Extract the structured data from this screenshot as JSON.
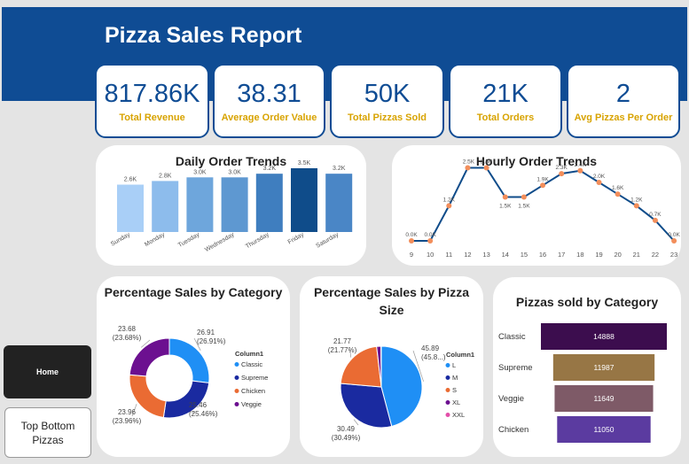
{
  "report": {
    "title": "Pizza Sales Report"
  },
  "kpis": [
    {
      "value": "817.86K",
      "label": "Total Revenue"
    },
    {
      "value": "38.31",
      "label": "Average Order Value"
    },
    {
      "value": "50K",
      "label": "Total Pizzas Sold"
    },
    {
      "value": "21K",
      "label": "Total Orders"
    },
    {
      "value": "2",
      "label": "Avg Pizzas Per Order"
    }
  ],
  "nav": {
    "home": "Home",
    "top_bottom": "Top Bottom Pizzas"
  },
  "chart_titles": {
    "daily": "Daily Order Trends",
    "hourly": "Hourly Order Trends",
    "category": "Percentage Sales by Category",
    "size_line1": "Percentage Sales by Pizza",
    "size_line2": "Size",
    "sold": "Pizzas sold by Category"
  },
  "chart_data": [
    {
      "type": "bar",
      "title": "Daily Order Trends",
      "categories": [
        "Sunday",
        "Monday",
        "Tuesday",
        "Wednesday",
        "Thursday",
        "Friday",
        "Saturday"
      ],
      "values": [
        2.6,
        2.8,
        3.0,
        3.0,
        3.2,
        3.5,
        3.2
      ],
      "labels": [
        "2.6K",
        "2.8K",
        "3.0K",
        "3.0K",
        "3.2K",
        "3.5K",
        "3.2K"
      ],
      "colors": [
        "#a9cff7",
        "#8dbcec",
        "#6ea6dc",
        "#5e98d1",
        "#3f7ebf",
        "#0f4c8a",
        "#4a86c6"
      ],
      "ylim": [
        0,
        3.5
      ]
    },
    {
      "type": "line",
      "title": "Hourly Order Trends",
      "x": [
        9,
        10,
        11,
        12,
        13,
        14,
        15,
        16,
        17,
        18,
        19,
        20,
        21,
        22,
        23
      ],
      "values": [
        0.0,
        0.0,
        1.2,
        2.5,
        2.5,
        1.5,
        1.5,
        1.9,
        2.3,
        2.4,
        2.0,
        1.6,
        1.2,
        0.7,
        0.0
      ],
      "labels": [
        "0.0K",
        "0.0K",
        "1.2K",
        "2.5K",
        "2.5K",
        "1.5K",
        "1.5K",
        "1.9K",
        "2.3K",
        "2.4K",
        "2.0K",
        "1.6K",
        "1.2K",
        "0.7K",
        "0.0K"
      ],
      "line_color": "#0f4c8a",
      "marker_color": "#f28e5b"
    },
    {
      "type": "pie",
      "title": "Percentage Sales by Category",
      "legend_title": "Column1",
      "donut": true,
      "slices": [
        {
          "name": "Classic",
          "value": 26.91,
          "label": "26.91",
          "pct": "(26.91%)",
          "color": "#1f8ff5"
        },
        {
          "name": "Supreme",
          "value": 25.46,
          "label": "25.46",
          "pct": "(25.46%)",
          "color": "#1a2aa0"
        },
        {
          "name": "Chicken",
          "value": 23.96,
          "label": "23.96",
          "pct": "(23.96%)",
          "color": "#ea6b33"
        },
        {
          "name": "Veggie",
          "value": 23.68,
          "label": "23.68",
          "pct": "(23.68%)",
          "color": "#6c1090"
        }
      ]
    },
    {
      "type": "pie",
      "title": "Percentage Sales by Pizza Size",
      "legend_title": "Column1",
      "donut": false,
      "slices": [
        {
          "name": "L",
          "value": 45.89,
          "label": "45.89",
          "pct": "(45.8...)",
          "color": "#1f8ff5"
        },
        {
          "name": "M",
          "value": 30.49,
          "label": "30.49",
          "pct": "(30.49%)",
          "color": "#1a2aa0"
        },
        {
          "name": "S",
          "value": 21.77,
          "label": "21.77",
          "pct": "(21.77%)",
          "color": "#ea6b33"
        },
        {
          "name": "XL",
          "value": 1.72,
          "label": "",
          "pct": "",
          "color": "#6c1090"
        },
        {
          "name": "XXL",
          "value": 0.12,
          "label": "",
          "pct": "",
          "color": "#e34fa9"
        }
      ]
    },
    {
      "type": "bar",
      "title": "Pizzas sold by Category",
      "orientation": "horizontal",
      "categories": [
        "Classic",
        "Supreme",
        "Veggie",
        "Chicken"
      ],
      "values": [
        14888,
        11987,
        11649,
        11050
      ],
      "colors": [
        "#3c0d4e",
        "#977645",
        "#7e5a67",
        "#5b3ba0"
      ],
      "xlim": [
        0,
        14888
      ]
    }
  ]
}
